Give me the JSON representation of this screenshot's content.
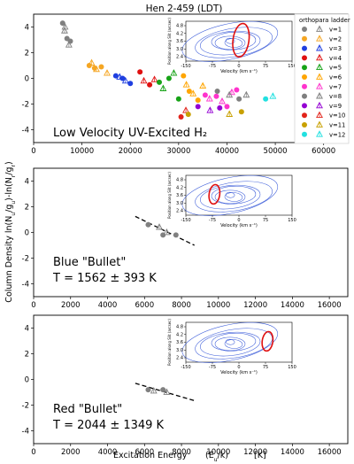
{
  "figure": {
    "title": "Hen 2-459 (LDT)",
    "ylabel": "Column Density   ln(N_u/g_u)-ln(N_r/g_r)",
    "xlabel": "Excitation Energy",
    "xlabel_unit": "(E_u/k)",
    "xlabel_bracket": "[K]"
  },
  "legend": {
    "headers": [
      "ortho",
      "para",
      "ladder"
    ],
    "entries": [
      {
        "label": "v=1",
        "color": "#808080"
      },
      {
        "label": "v=2",
        "color": "#f5a623"
      },
      {
        "label": "v=3",
        "color": "#1f3fe0"
      },
      {
        "label": "v=4",
        "color": "#e01010"
      },
      {
        "label": "v=5",
        "color": "#17a317"
      },
      {
        "label": "v=6",
        "color": "#ffa500"
      },
      {
        "label": "v=7",
        "color": "#ff33cc"
      },
      {
        "label": "v=8",
        "color": "#7f7f7f"
      },
      {
        "label": "v=9",
        "color": "#9400d3"
      },
      {
        "label": "v=10",
        "color": "#e2231a"
      },
      {
        "label": "v=11",
        "color": "#c8a000"
      },
      {
        "label": "v=12",
        "color": "#22e0e0"
      }
    ]
  },
  "chart_data": [
    {
      "type": "scatter",
      "panel": "top",
      "annotation": "Low Velocity UV-Excited H₂",
      "xlim": [
        0,
        65000
      ],
      "ylim": [
        -5,
        5
      ],
      "xticks": [
        "0",
        "10000",
        "20000",
        "30000",
        "40000",
        "50000",
        "60000"
      ],
      "yticks": [
        "4",
        "2",
        "0",
        "-2",
        "-4"
      ],
      "series": [
        {
          "label": "v=1",
          "color": "#808080",
          "points": [
            [
              6000,
              4.3
            ],
            [
              6400,
              3.7
            ],
            [
              6900,
              3.1
            ],
            [
              7300,
              2.6
            ],
            [
              7600,
              2.9
            ],
            [
              6500,
              4.0
            ]
          ]
        },
        {
          "label": "v=2",
          "color": "#f5a623",
          "points": [
            [
              11500,
              1.0
            ],
            [
              12000,
              1.2
            ],
            [
              12600,
              0.8
            ],
            [
              13000,
              0.7
            ],
            [
              14000,
              0.9
            ],
            [
              15200,
              0.4
            ]
          ]
        },
        {
          "label": "v=3",
          "color": "#1f3fe0",
          "points": [
            [
              17000,
              0.2
            ],
            [
              17800,
              0.1
            ],
            [
              18400,
              0.0
            ],
            [
              19000,
              -0.2
            ],
            [
              20000,
              -0.4
            ]
          ]
        },
        {
          "label": "v=4",
          "color": "#e01010",
          "points": [
            [
              22000,
              0.5
            ],
            [
              22800,
              -0.2
            ],
            [
              24000,
              -0.5
            ],
            [
              25000,
              -0.1
            ]
          ]
        },
        {
          "label": "v=5",
          "color": "#17a317",
          "points": [
            [
              26000,
              -0.3
            ],
            [
              26800,
              -0.8
            ],
            [
              28000,
              0.0
            ],
            [
              29000,
              0.4
            ],
            [
              30000,
              -1.6
            ]
          ]
        },
        {
          "label": "v=6",
          "color": "#ffa500",
          "points": [
            [
              31000,
              0.2
            ],
            [
              31600,
              -0.5
            ],
            [
              32200,
              -1.0
            ],
            [
              33000,
              -1.2
            ],
            [
              34000,
              -1.7
            ],
            [
              35000,
              -0.6
            ]
          ]
        },
        {
          "label": "v=7",
          "color": "#ff33cc",
          "points": [
            [
              35500,
              -1.3
            ],
            [
              36400,
              -1.6
            ],
            [
              37800,
              -1.4
            ],
            [
              39000,
              -1.8
            ],
            [
              40000,
              -2.2
            ],
            [
              41000,
              -1.1
            ],
            [
              42000,
              -0.9
            ]
          ]
        },
        {
          "label": "v=8",
          "color": "#7f7f7f",
          "points": [
            [
              38000,
              -1.0
            ],
            [
              40500,
              -1.3
            ],
            [
              42500,
              -1.6
            ],
            [
              44000,
              -1.3
            ]
          ]
        },
        {
          "label": "v=9",
          "color": "#9400d3",
          "points": [
            [
              34000,
              -2.2
            ],
            [
              36500,
              -2.5
            ],
            [
              38500,
              -2.3
            ]
          ]
        },
        {
          "label": "v=10",
          "color": "#e2231a",
          "points": [
            [
              30500,
              -3.0
            ],
            [
              31500,
              -2.5
            ]
          ]
        },
        {
          "label": "v=11",
          "color": "#c8a000",
          "points": [
            [
              32000,
              -2.8
            ],
            [
              40500,
              -2.8
            ],
            [
              43000,
              -2.6
            ]
          ]
        },
        {
          "label": "v=12",
          "color": "#22e0e0",
          "points": [
            [
              48000,
              -1.6
            ],
            [
              49500,
              -1.4
            ]
          ]
        }
      ]
    },
    {
      "type": "scatter",
      "panel": "middle",
      "annotation_line1": "Blue \"Bullet\"",
      "annotation_line2": "T = 1562 ± 393 K",
      "xlim": [
        0,
        17000
      ],
      "ylim": [
        -5,
        5
      ],
      "xticks": [
        "0",
        "2000",
        "4000",
        "6000",
        "8000",
        "10000",
        "12000",
        "14000",
        "16000"
      ],
      "yticks": [
        "4",
        "2",
        "0",
        "-2",
        "-4"
      ],
      "fit": [
        [
          5500,
          1.25
        ],
        [
          8700,
          -1.0
        ]
      ],
      "series": [
        {
          "label": "v=1",
          "color": "#808080",
          "points": [
            [
              6200,
              0.6
            ],
            [
              6800,
              0.4
            ],
            [
              7000,
              -0.2
            ],
            [
              7200,
              0.0
            ],
            [
              7700,
              -0.2
            ]
          ]
        }
      ]
    },
    {
      "type": "scatter",
      "panel": "bottom",
      "annotation_line1": "Red \"Bullet\"",
      "annotation_line2": "T = 2044 ± 1349 K",
      "xlim": [
        0,
        17000
      ],
      "ylim": [
        -5,
        5
      ],
      "xticks": [
        "0",
        "2000",
        "4000",
        "6000",
        "8000",
        "10000",
        "12000",
        "14000",
        "16000"
      ],
      "yticks": [
        "4",
        "2",
        "0",
        "-2",
        "-4"
      ],
      "fit": [
        [
          5500,
          -0.3
        ],
        [
          8700,
          -1.65
        ]
      ],
      "series": [
        {
          "label": "v=1",
          "color": "#808080",
          "points": [
            [
              6200,
              -0.8
            ],
            [
              6500,
              -0.9
            ],
            [
              7000,
              -0.8
            ],
            [
              7200,
              -1.0
            ]
          ]
        }
      ]
    }
  ],
  "insets": [
    {
      "panel": "top",
      "xlabel": "Velocity (km s⁻¹)",
      "ylabel": "Position along Slit (arcsec)",
      "xticks": [
        "-150",
        "-75",
        "0",
        "75",
        "150"
      ],
      "yticks": [
        "4.8",
        "4.2",
        "3.6",
        "3.0",
        "2.4"
      ],
      "highlight_velocity": 5,
      "contour_color": "#3a5bd9",
      "highlight_color": "#e01010"
    },
    {
      "panel": "middle",
      "xlabel": "Velocity (km s⁻¹)",
      "ylabel": "Position along Slit (arcsec)",
      "xticks": [
        "-150",
        "-75",
        "0",
        "75",
        "150"
      ],
      "yticks": [
        "4.8",
        "4.2",
        "3.6",
        "3.0",
        "2.4"
      ],
      "highlight_velocity": -70,
      "contour_color": "#3a5bd9",
      "highlight_color": "#e01010"
    },
    {
      "panel": "bottom",
      "xlabel": "Velocity (km s⁻¹)",
      "ylabel": "Position along Slit (arcsec)",
      "xticks": [
        "-150",
        "-75",
        "0",
        "75",
        "150"
      ],
      "yticks": [
        "4.8",
        "4.2",
        "3.6",
        "3.0",
        "2.4"
      ],
      "highlight_velocity": 80,
      "contour_color": "#3a5bd9",
      "highlight_color": "#e01010"
    }
  ]
}
